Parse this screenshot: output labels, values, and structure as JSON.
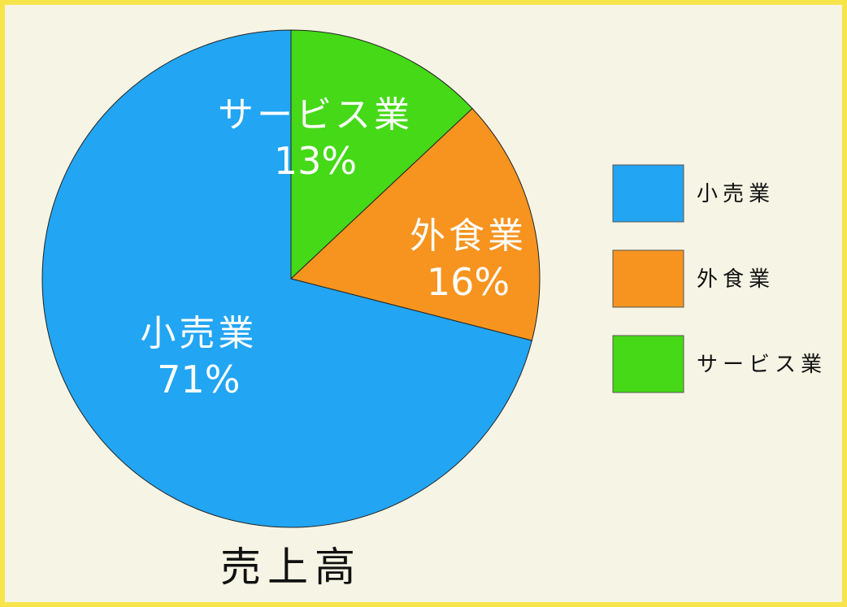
{
  "colors": {
    "background": "#f6f4e4",
    "frame": "#f7e44a",
    "outline": "#222222"
  },
  "chart_data": {
    "type": "pie",
    "title": "売上高",
    "slices": [
      {
        "label": "サービス業",
        "value": 13,
        "value_label": "13%",
        "color": "#45d917"
      },
      {
        "label": "外食業",
        "value": 16,
        "value_label": "16%",
        "color": "#f6941f"
      },
      {
        "label": "小売業",
        "value": 71,
        "value_label": "71%",
        "color": "#22a5f2"
      }
    ],
    "start_angle_deg": 0,
    "direction": "clockwise",
    "legend": {
      "position": "right",
      "entries": [
        {
          "label": "小売業",
          "color": "#22a5f2"
        },
        {
          "label": "外食業",
          "color": "#f6941f"
        },
        {
          "label": "サービス業",
          "color": "#45d917"
        }
      ]
    }
  }
}
